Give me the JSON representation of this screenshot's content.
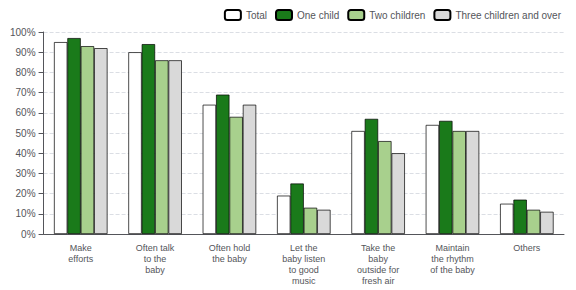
{
  "chart_data": {
    "type": "bar",
    "categories": [
      "Make\nefforts",
      "Often talk\nto the\nbaby",
      "Often hold\nthe baby",
      "Let the\nbaby listen\nto good\nmusic",
      "Take the\nbaby\noutside for\nfresh air",
      "Maintain\nthe rhythm\nof the baby",
      "Others"
    ],
    "series": [
      {
        "name": "Total",
        "color": "#ffffff",
        "values": [
          95,
          90,
          64,
          19,
          51,
          54,
          15
        ]
      },
      {
        "name": "One child",
        "color": "#1a7a1a",
        "values": [
          97,
          94,
          69,
          25,
          57,
          56,
          17
        ]
      },
      {
        "name": "Two children",
        "color": "#a8d08d",
        "values": [
          93,
          86,
          58,
          13,
          46,
          51,
          12
        ]
      },
      {
        "name": "Three children and over",
        "color": "#d9d9d9",
        "values": [
          92,
          86,
          64,
          12,
          40,
          51,
          11
        ]
      }
    ],
    "ylim": [
      0,
      100
    ],
    "yticks": [
      {
        "value": 0,
        "label": "0%"
      },
      {
        "value": 10,
        "label": "10%"
      },
      {
        "value": 20,
        "label": "20%"
      },
      {
        "value": 30,
        "label": "30%"
      },
      {
        "value": 40,
        "label": "40%"
      },
      {
        "value": 50,
        "label": "50%"
      },
      {
        "value": 60,
        "label": "60%"
      },
      {
        "value": 70,
        "label": "70%"
      },
      {
        "value": 80,
        "label": "80%"
      },
      {
        "value": 90,
        "label": "90%"
      },
      {
        "value": 100,
        "label": "100%"
      }
    ],
    "grid": true,
    "legend": "upper right"
  }
}
